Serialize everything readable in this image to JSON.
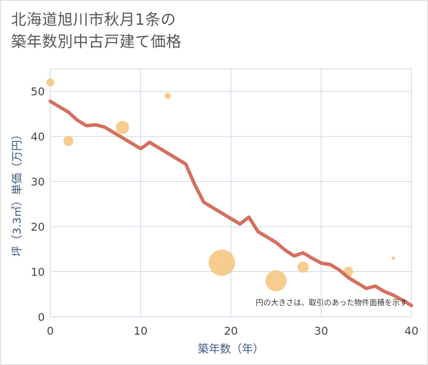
{
  "chart_data": {
    "type": "scatter",
    "title_lines": [
      "北海道旭川市秋月1条の",
      "築年数別中古戸建て価格"
    ],
    "xlabel": "築年数（年）",
    "ylabel": "坪（3.3㎡）単価（万円）",
    "xlim": [
      0,
      40
    ],
    "ylim": [
      0,
      55
    ],
    "xticks": [
      0,
      10,
      20,
      30,
      40
    ],
    "yticks": [
      0,
      10,
      20,
      30,
      40,
      50
    ],
    "grid": true,
    "note": "円の大きさは、取引のあった物件面積を示す",
    "colors": {
      "trend": "#d4705e",
      "bubble": "#f5c47a",
      "grid": "#c9d6e6"
    },
    "series": [
      {
        "name": "trend",
        "kind": "line",
        "x": [
          0,
          1,
          2,
          3,
          4,
          5,
          6,
          7,
          8,
          9,
          10,
          11,
          12,
          13,
          14,
          15,
          16,
          17,
          18,
          19,
          20,
          21,
          22,
          23,
          24,
          25,
          26,
          27,
          28,
          29,
          30,
          31,
          32,
          33,
          34,
          35,
          36,
          37,
          38,
          39,
          40
        ],
        "y": [
          47.8,
          46.6,
          45.4,
          43.6,
          42.4,
          42.6,
          42.1,
          40.9,
          39.7,
          38.5,
          37.3,
          38.7,
          37.5,
          36.3,
          35.1,
          33.9,
          29.3,
          25.4,
          24.2,
          23.0,
          21.8,
          20.6,
          22.1,
          18.9,
          17.7,
          16.5,
          14.8,
          13.5,
          14.2,
          13.0,
          11.9,
          11.6,
          10.4,
          8.7,
          7.5,
          6.3,
          6.8,
          5.6,
          4.8,
          3.7,
          2.5
        ]
      },
      {
        "name": "transactions",
        "kind": "bubble",
        "points": [
          {
            "x": 0,
            "y": 52,
            "size": 1.2
          },
          {
            "x": 2,
            "y": 39,
            "size": 1.5
          },
          {
            "x": 8,
            "y": 42,
            "size": 2.0
          },
          {
            "x": 13,
            "y": 49,
            "size": 1.0
          },
          {
            "x": 19,
            "y": 12,
            "size": 4.0
          },
          {
            "x": 25,
            "y": 8,
            "size": 3.2
          },
          {
            "x": 28,
            "y": 11,
            "size": 1.7
          },
          {
            "x": 33,
            "y": 10,
            "size": 1.5
          },
          {
            "x": 38,
            "y": 13,
            "size": 0.55
          }
        ]
      }
    ]
  }
}
